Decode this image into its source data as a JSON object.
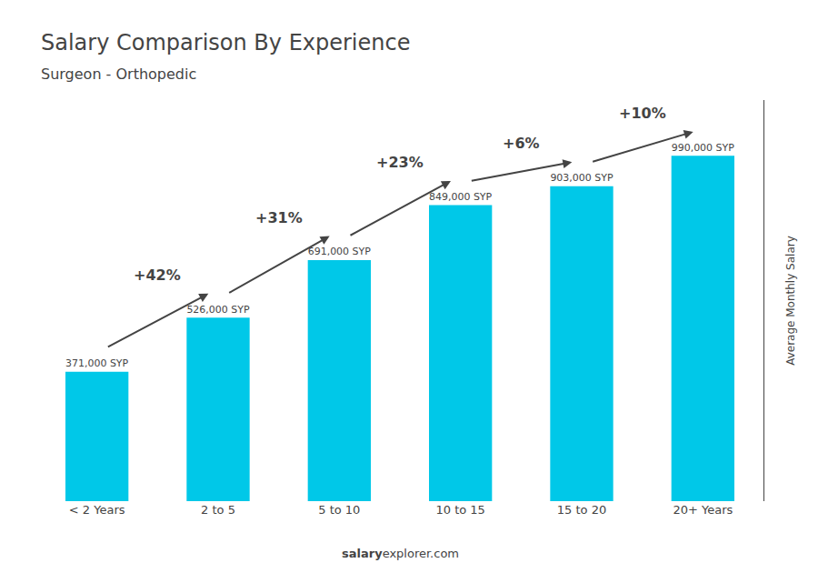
{
  "chart_data": {
    "type": "bar",
    "title": "Salary Comparison By Experience",
    "subtitle": "Surgeon - Orthopedic",
    "ylabel": "Average Monthly Salary",
    "footer": [
      "salary",
      "explorer.com"
    ],
    "categories": [
      "< 2 Years",
      "2 to 5",
      "5 to 10",
      "10 to 15",
      "15 to 20",
      "20+ Years"
    ],
    "values": [
      371000,
      526000,
      691000,
      849000,
      903000,
      990000
    ],
    "value_labels": [
      "371,000 SYP",
      "526,000 SYP",
      "691,000 SYP",
      "849,000 SYP",
      "903,000 SYP",
      "990,000 SYP"
    ],
    "data_labels": true,
    "color": "#00c8e8",
    "ylim": [
      0,
      1150000
    ],
    "tick_labels": "x",
    "grid": false,
    "annotations": [
      {
        "text": "+42%",
        "from": "< 2 Years",
        "to": "2 to 5"
      },
      {
        "text": "+31%",
        "from": "2 to 5",
        "to": "5 to 10"
      },
      {
        "text": "+23%",
        "from": "5 to 10",
        "to": "10 to 15"
      },
      {
        "text": "+6%",
        "from": "10 to 15",
        "to": "15 to 20"
      },
      {
        "text": "+10%",
        "from": "15 to 20",
        "to": "20+ Years"
      }
    ]
  }
}
